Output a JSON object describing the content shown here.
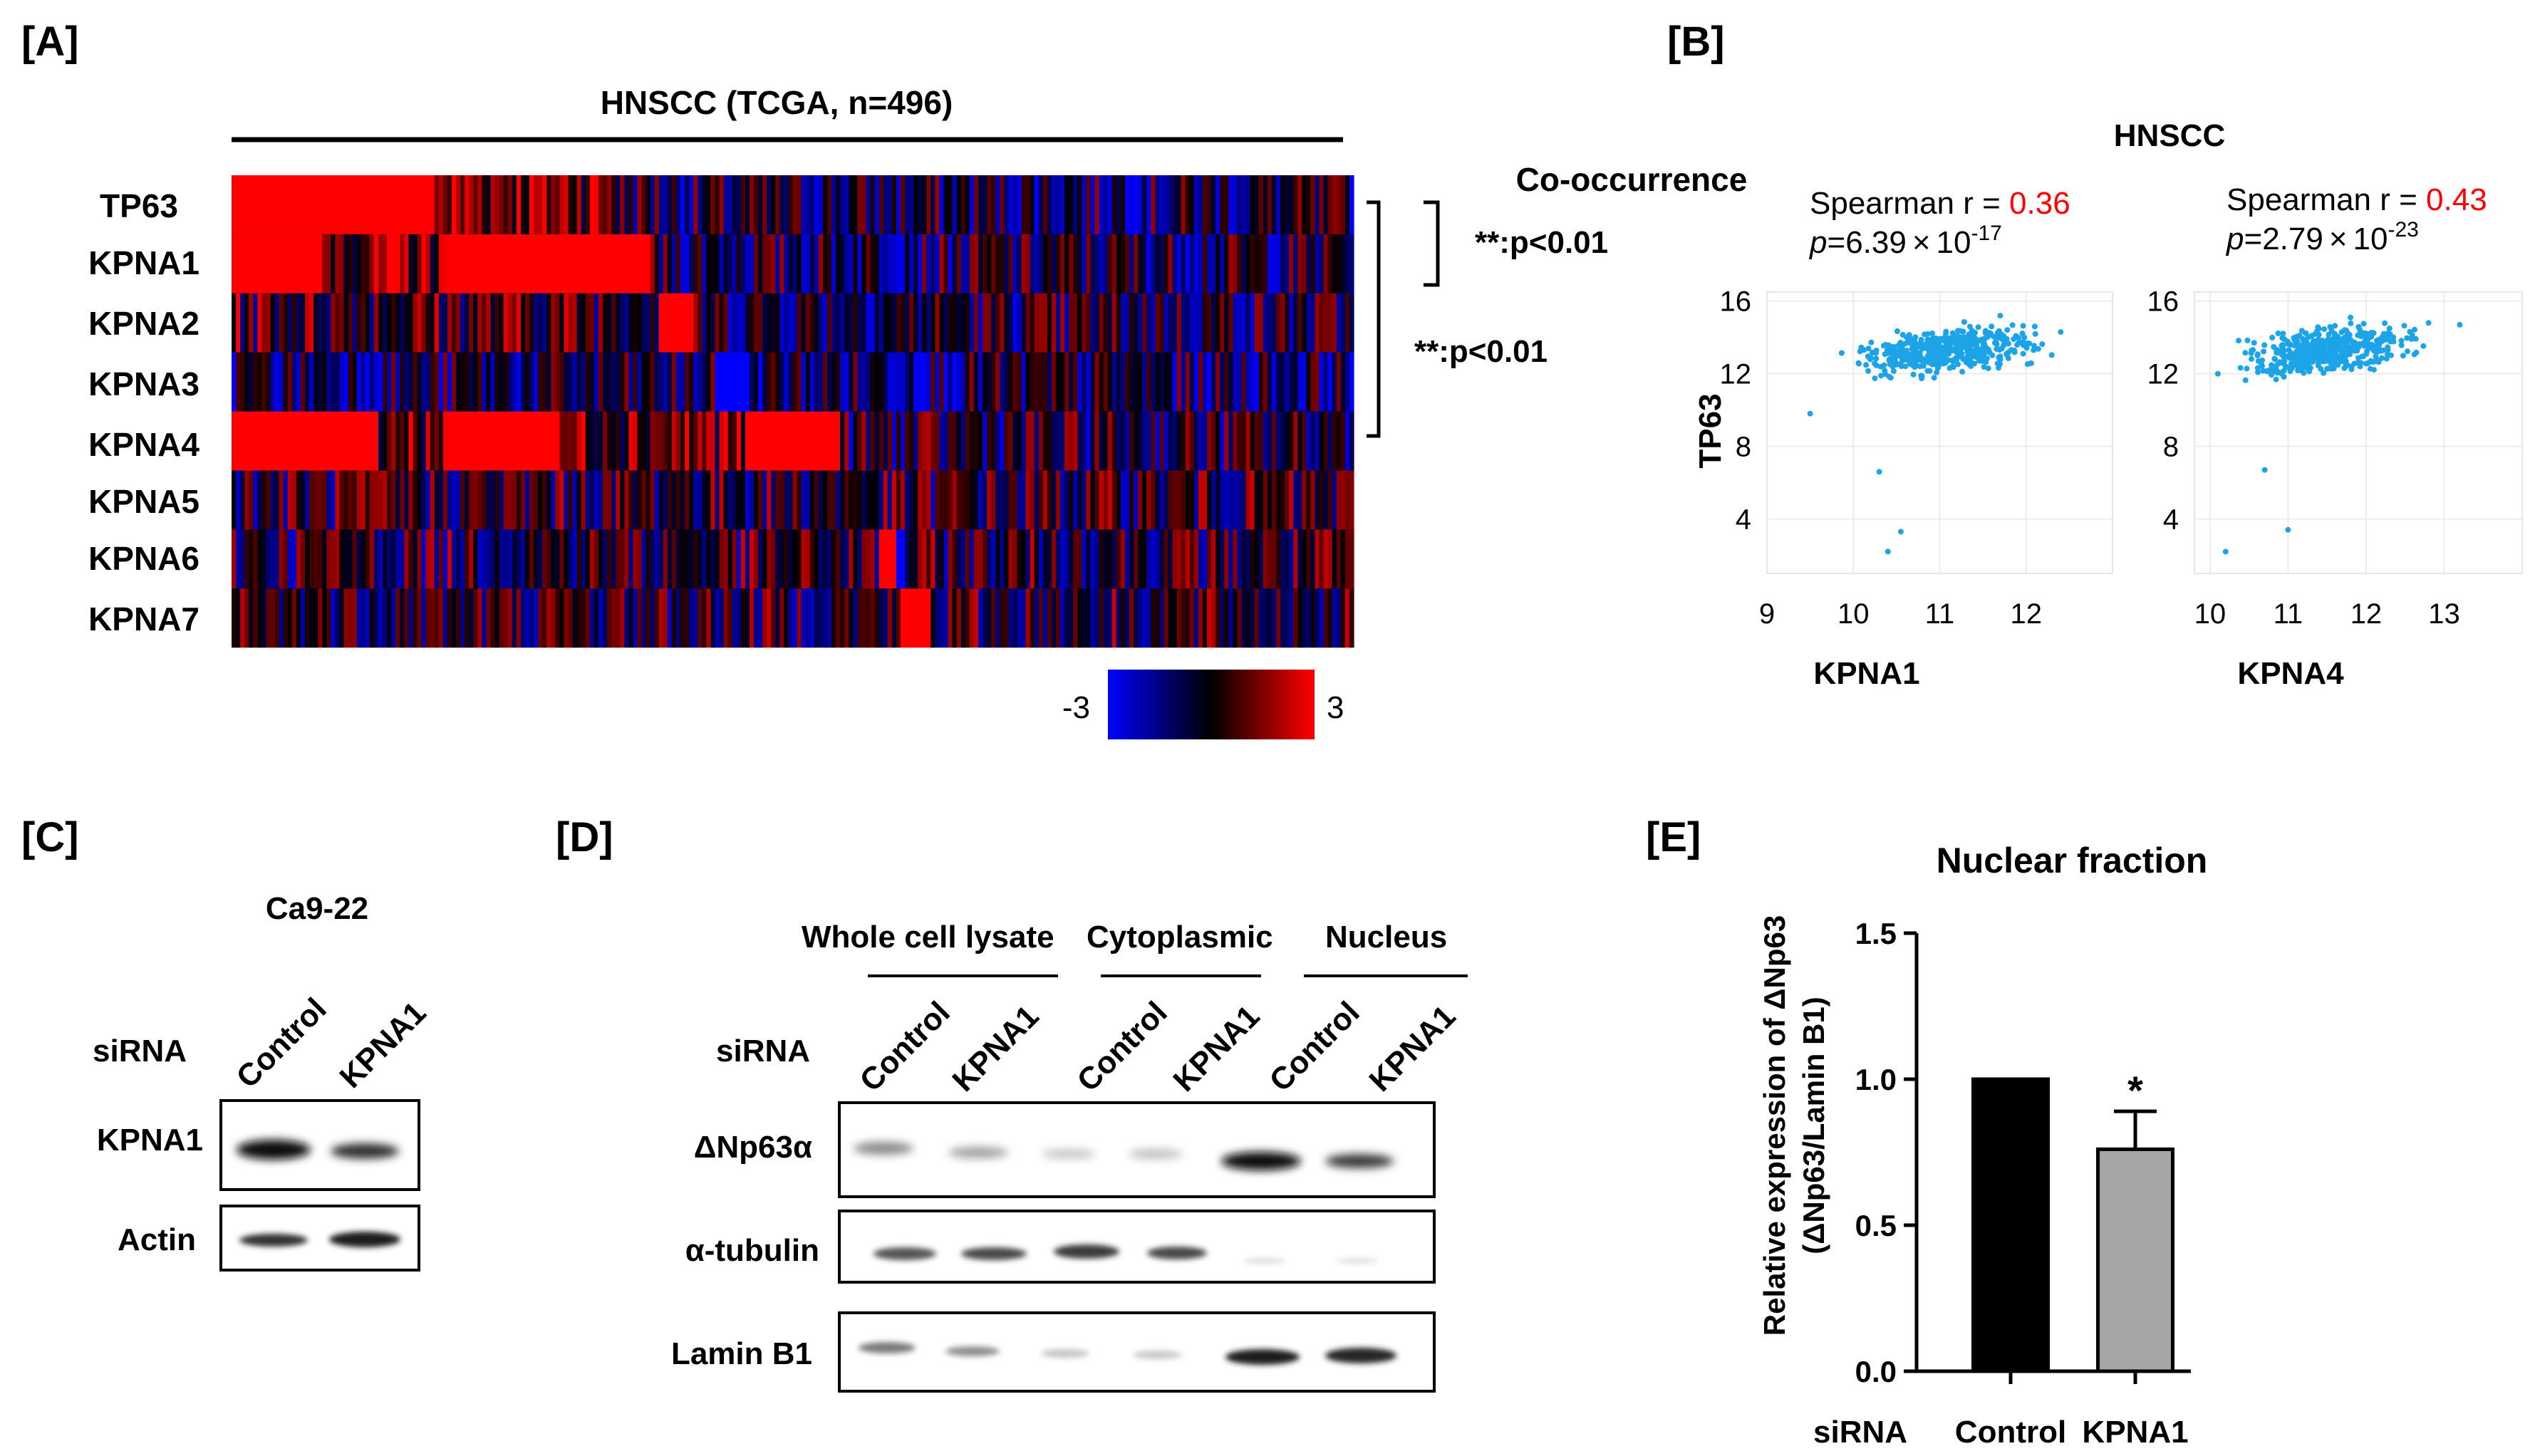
{
  "panels": {
    "a": "[A]",
    "b": "[B]",
    "c": "[C]",
    "d": "[D]",
    "e": "[E]"
  },
  "panel_a": {
    "title": "HNSCC (TCGA, n=496)",
    "genes": [
      "TP63",
      "KPNA1",
      "KPNA2",
      "KPNA3",
      "KPNA4",
      "KPNA5",
      "KPNA6",
      "KPNA7"
    ],
    "cooccurrence_title": "Co-occurrence",
    "sig_kpna1": "**:p<0.01",
    "sig_kpna4": "**:p<0.01",
    "scale_min": "-3",
    "scale_max": "3",
    "colors": {
      "low": "#0000ff",
      "mid": "#000000",
      "high": "#ff0000"
    }
  },
  "panel_b": {
    "title": "HNSCC",
    "ylabel": "TP63",
    "spearman_prefix": "Spearman r = ",
    "p_prefix": "p",
    "p_eq": "=",
    "times": "×",
    "plots": [
      {
        "r": "0.36",
        "p_mantissa": "6.39",
        "p_base": "10",
        "p_exp": "-17",
        "xlabel": "KPNA1",
        "xticks": [
          "9",
          "10",
          "11",
          "12"
        ],
        "yticks": [
          "16",
          "12",
          "8",
          "4"
        ]
      },
      {
        "r": "0.43",
        "p_mantissa": "2.79",
        "p_base": "10",
        "p_exp": "-23",
        "xlabel": "KPNA4",
        "xticks": [
          "10",
          "11",
          "12",
          "13"
        ],
        "yticks": [
          "16",
          "12",
          "8",
          "4"
        ]
      }
    ],
    "point_color": "#1ca3e8",
    "r_color": "#ff0000"
  },
  "panel_c": {
    "cell_line": "Ca9-22",
    "sirna_label": "siRNA",
    "lanes": [
      "Control",
      "KPNA1"
    ],
    "rows": [
      "KPNA1",
      "Actin"
    ]
  },
  "panel_d": {
    "groups": [
      "Whole cell lysate",
      "Cytoplasmic",
      "Nucleus"
    ],
    "sirna_label": "siRNA",
    "lanes": [
      "Control",
      "KPNA1",
      "Control",
      "KPNA1",
      "Control",
      "KPNA1"
    ],
    "rows": [
      "ΔNp63α",
      "α-tubulin",
      "Lamin B1"
    ]
  },
  "panel_e": {
    "title": "Nuclear fraction",
    "ylabel_line1": "Relative expression of ΔNp63",
    "ylabel_line2": "(ΔNp63/Lamin B1)",
    "sirna_label": "siRNA",
    "significance": "*"
  },
  "chart_data": [
    {
      "type": "scatter",
      "title": "HNSCC",
      "xlabel": "KPNA1",
      "ylabel": "TP63",
      "xlim": [
        9,
        13
      ],
      "ylim": [
        1,
        16.5
      ],
      "annotation": "Spearman r = 0.36, p=6.39×10-17",
      "series": [
        {
          "x": [
            10.4,
            10.55,
            10.3,
            9.5,
            10.5,
            11.0,
            10.8,
            11.2,
            11.5,
            10.9,
            12.4,
            12.1,
            11.7
          ],
          "y": [
            2.2,
            3.3,
            6.6,
            9.8,
            12.5,
            13.0,
            12.8,
            14.1,
            13.4,
            13.7,
            14.3,
            14.6,
            15.2
          ]
        }
      ]
    },
    {
      "type": "scatter",
      "title": "HNSCC",
      "xlabel": "KPNA4",
      "ylabel": "TP63",
      "xlim": [
        9.8,
        14
      ],
      "ylim": [
        1,
        16.5
      ],
      "annotation": "Spearman r = 0.43, p=2.79×10-23",
      "series": [
        {
          "x": [
            10.2,
            11.0,
            10.7,
            10.1,
            10.9,
            11.3,
            11.6,
            11.1,
            12.0,
            12.3,
            12.8,
            13.2,
            11.8
          ],
          "y": [
            2.2,
            3.4,
            6.7,
            12.0,
            12.6,
            13.1,
            13.5,
            14.0,
            14.2,
            14.5,
            14.8,
            14.7,
            15.1
          ]
        }
      ]
    },
    {
      "type": "bar",
      "title": "Nuclear fraction",
      "xlabel": "siRNA",
      "ylabel": "Relative expression of ΔNp63 (ΔNp63/Lamin B1)",
      "categories": [
        "Control",
        "KPNA1"
      ],
      "values": [
        1.0,
        0.76
      ],
      "error": [
        0,
        0.13
      ],
      "ylim": [
        0,
        1.5
      ],
      "yticks": [
        "0.0",
        "0.5",
        "1.0",
        "1.5"
      ],
      "colors": [
        "#000000",
        "#a6a6a6"
      ]
    }
  ]
}
